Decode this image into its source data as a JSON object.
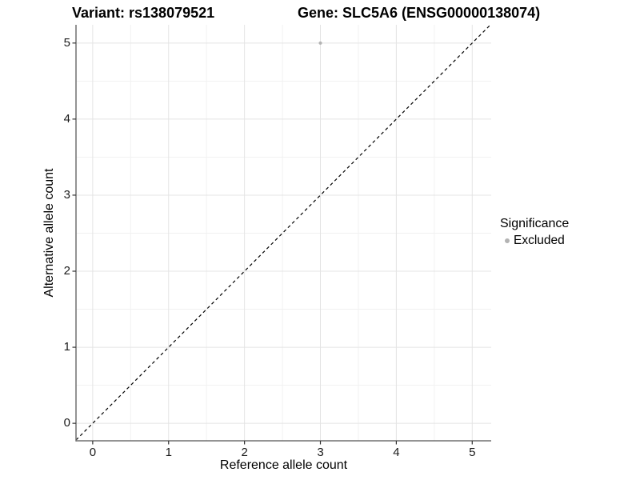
{
  "titles": {
    "left": "Variant: rs138079521",
    "right": "Gene: SLC5A6 (ENSG00000138074)"
  },
  "colors": {
    "grid_major": "#e4e4e4",
    "grid_minor": "#f1f1f1",
    "axis_line": "#707070",
    "tick": "#333333",
    "diagonal": "#000000",
    "point": "#b3b3b3",
    "background": "#ffffff"
  },
  "chart_data": {
    "type": "scatter",
    "title_left": "Variant: rs138079521",
    "title_right": "Gene: SLC5A6 (ENSG00000138074)",
    "xlabel": "Reference allele count",
    "ylabel": "Alternative allele count",
    "xlim": [
      -0.22,
      5.25
    ],
    "ylim": [
      -0.23,
      5.24
    ],
    "x_ticks": [
      0,
      1,
      2,
      3,
      4,
      5
    ],
    "y_ticks": [
      0,
      1,
      2,
      3,
      4,
      5
    ],
    "x_minor_ticks": [
      0.5,
      1.5,
      2.5,
      3.5,
      4.5
    ],
    "y_minor_ticks": [
      0.5,
      1.5,
      2.5,
      3.5,
      4.5
    ],
    "grid": true,
    "series": [
      {
        "name": "Excluded",
        "color": "#b3b3b3",
        "points": [
          {
            "x": 3,
            "y": 5
          }
        ]
      }
    ],
    "reference_line": {
      "kind": "identity",
      "equation": "y = x",
      "style": "dashed",
      "color": "#000000"
    },
    "legend": {
      "title": "Significance",
      "position": "right",
      "items": [
        {
          "label": "Excluded",
          "color": "#b3b3b3",
          "marker": "dot-icon"
        }
      ]
    }
  }
}
